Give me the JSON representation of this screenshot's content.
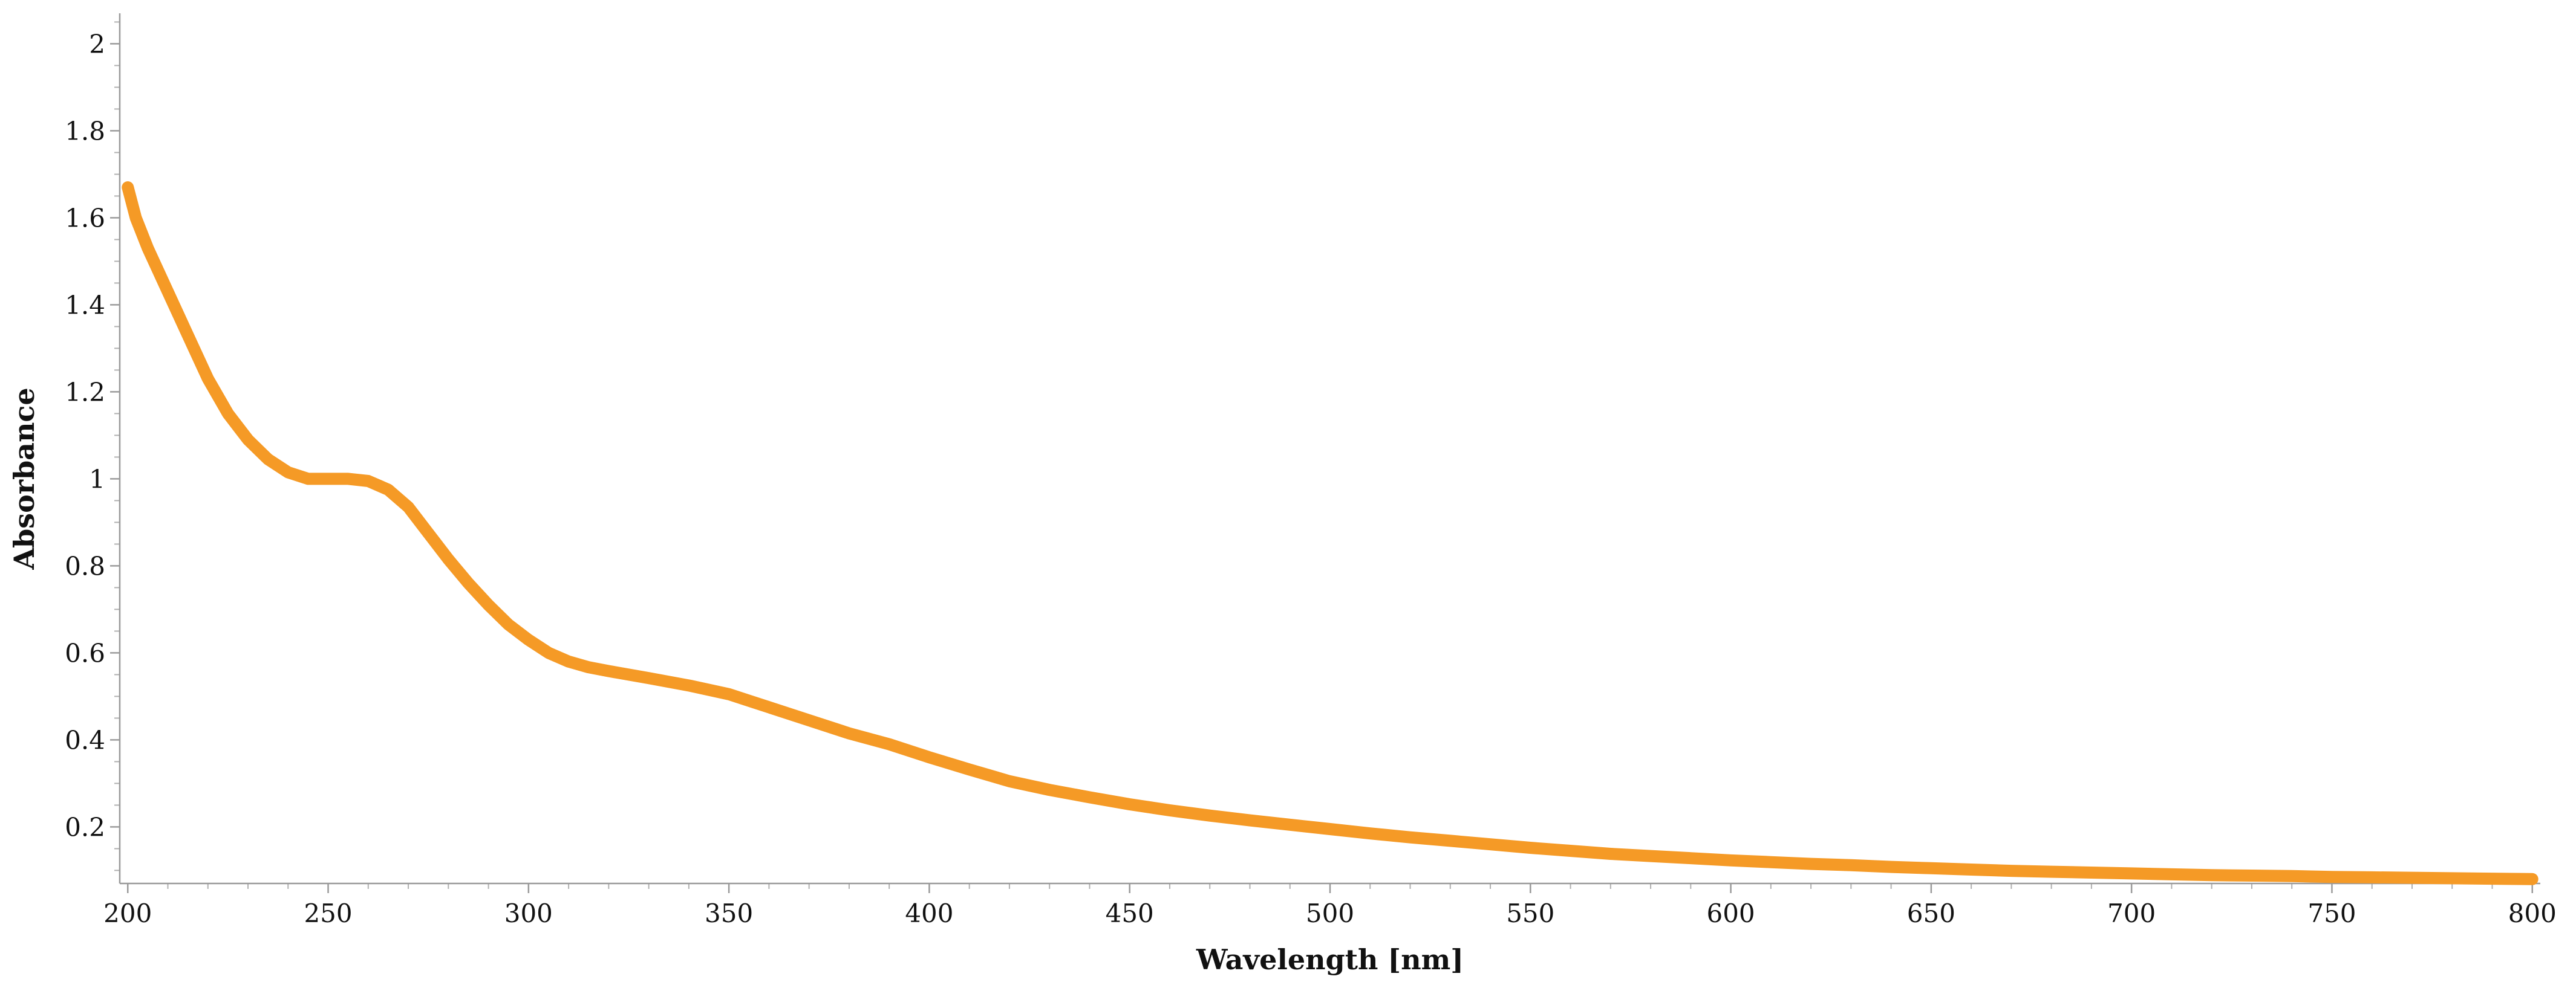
{
  "chart_data": {
    "type": "line",
    "title": "",
    "xlabel": "Wavelength [nm]",
    "ylabel": "Absorbance",
    "xlim": [
      198,
      802
    ],
    "ylim": [
      0.07,
      2.07
    ],
    "x_ticks": [
      "200",
      "250",
      "300",
      "350",
      "400",
      "450",
      "500",
      "550",
      "600",
      "650",
      "700",
      "750",
      "800"
    ],
    "y_ticks": [
      "0.2",
      "0.4",
      "0.6",
      "0.8",
      "1",
      "1.2",
      "1.4",
      "1.6",
      "1.8",
      "2"
    ],
    "grid": false,
    "legend": "none",
    "series": [
      {
        "color": "#f59a26",
        "x": [
          200,
          202,
          205,
          210,
          215,
          220,
          225,
          230,
          235,
          240,
          245,
          250,
          255,
          260,
          265,
          270,
          275,
          280,
          285,
          290,
          295,
          300,
          305,
          310,
          315,
          320,
          330,
          340,
          350,
          355,
          360,
          370,
          380,
          390,
          400,
          410,
          420,
          430,
          440,
          450,
          460,
          470,
          480,
          490,
          500,
          510,
          520,
          530,
          540,
          550,
          560,
          570,
          580,
          590,
          600,
          610,
          620,
          630,
          640,
          650,
          660,
          670,
          680,
          690,
          700,
          710,
          720,
          730,
          740,
          750,
          760,
          770,
          780,
          790,
          800
        ],
        "y": [
          1.67,
          1.6,
          1.53,
          1.43,
          1.33,
          1.23,
          1.15,
          1.09,
          1.045,
          1.015,
          1.0,
          1.0,
          1.0,
          0.995,
          0.975,
          0.935,
          0.875,
          0.815,
          0.76,
          0.71,
          0.665,
          0.63,
          0.6,
          0.58,
          0.567,
          0.558,
          0.542,
          0.525,
          0.505,
          0.49,
          0.475,
          0.445,
          0.415,
          0.39,
          0.36,
          0.332,
          0.305,
          0.285,
          0.268,
          0.252,
          0.238,
          0.226,
          0.215,
          0.205,
          0.195,
          0.185,
          0.176,
          0.168,
          0.16,
          0.152,
          0.145,
          0.138,
          0.133,
          0.128,
          0.123,
          0.119,
          0.115,
          0.112,
          0.108,
          0.105,
          0.102,
          0.099,
          0.097,
          0.095,
          0.093,
          0.091,
          0.089,
          0.088,
          0.087,
          0.085,
          0.084,
          0.083,
          0.082,
          0.081,
          0.08
        ]
      }
    ]
  }
}
